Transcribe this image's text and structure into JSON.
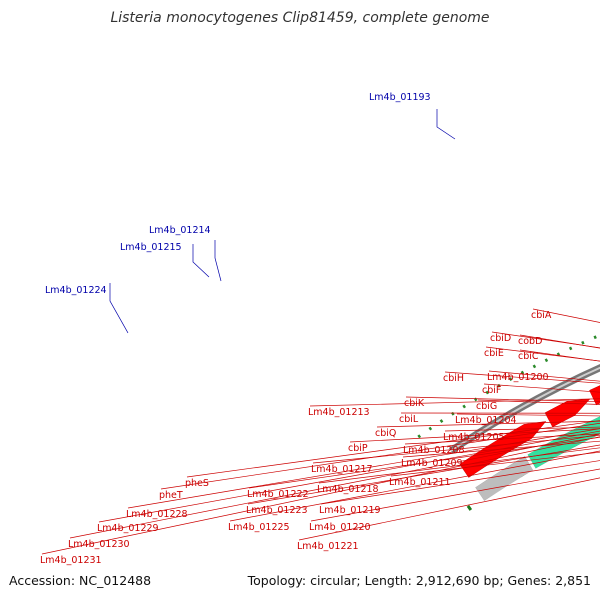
{
  "title": "Listeria monocytogenes Clip81459, complete genome",
  "accession": "Accession: NC_012488",
  "summary": "Topology: circular; Length: 2,912,690 bp; Genes: 2,851",
  "scale": {
    "unit_suffix": " kbp",
    "ticks": [
      1190,
      1195,
      1200,
      1205,
      1210,
      1215,
      1220,
      1225
    ]
  },
  "colors": {
    "forward_gene": "#ff0000",
    "backbone": "#888888",
    "tick": "#1a7a1a",
    "label_red": "#cc0000",
    "label_blue": "#0000aa"
  },
  "bottom_labels": [
    "cbiA",
    "cobD",
    "cbiC",
    "cbiD",
    "cbiE",
    "Lm4b_01200",
    "cbiF",
    "cbiH",
    "cbiG",
    "Lm4b_01204",
    "cbiK",
    "cbiL",
    "Lm4b_01205",
    "cbiQ",
    "Lm4b_01208",
    "cbiP",
    "Lm4b_01209",
    "Lm4b_01213",
    "Lm4b_01211",
    "Lm4b_01217",
    "Lm4b_01218",
    "Lm4b_01219",
    "Lm4b_01220",
    "Lm4b_01221",
    "Lm4b_01222",
    "Lm4b_01223",
    "Lm4b_01225",
    "pheS",
    "pheT",
    "Lm4b_01228",
    "Lm4b_01229",
    "Lm4b_01230",
    "Lm4b_01231"
  ],
  "top_labels": [
    "Lm4b_01193",
    "Lm4b_01214",
    "Lm4b_01215",
    "Lm4b_01224"
  ]
}
